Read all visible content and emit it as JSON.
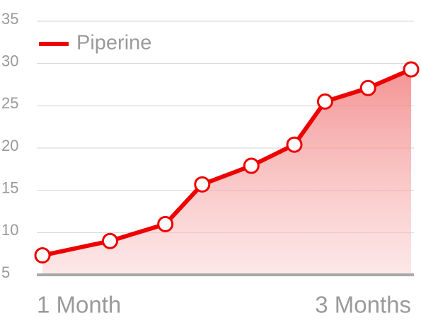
{
  "chart_data": {
    "type": "line",
    "x": [
      30,
      41,
      50,
      56,
      64,
      71,
      76,
      83,
      90
    ],
    "series": [
      {
        "name": "Piperine",
        "color": "#ee0000",
        "values": [
          7.3,
          9.0,
          11.0,
          15.7,
          17.9,
          20.4,
          25.5,
          27.1,
          29.3
        ]
      }
    ],
    "xlim": [
      30,
      90
    ],
    "xticks": [
      {
        "value": 30,
        "label": "1 Month"
      },
      {
        "value": 90,
        "label": "3 Months"
      }
    ],
    "ylim": [
      5,
      35
    ],
    "yticks": [
      5,
      10,
      15,
      20,
      25,
      30,
      35
    ],
    "grid": true,
    "legend": "top-left",
    "fill": true
  }
}
